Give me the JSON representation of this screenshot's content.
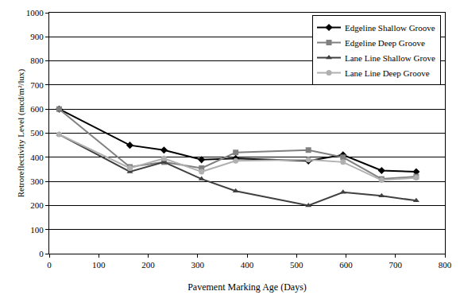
{
  "chart_data": {
    "type": "line",
    "x_label": "Pavement Marking Age (Days)",
    "y_label": "Retroreflectivity Level (mcd/m²/lux)",
    "x": [
      20,
      163,
      232,
      308,
      377,
      524,
      594,
      672,
      742
    ],
    "series": [
      {
        "name": "Edgeline Shallow Groove",
        "color": "#000000",
        "marker": "diamond",
        "values": [
          600,
          450,
          430,
          390,
          395,
          385,
          410,
          345,
          340
        ]
      },
      {
        "name": "Edgeline Deep Groove",
        "color": "#808080",
        "marker": "square",
        "values": [
          600,
          360,
          380,
          355,
          420,
          430,
          400,
          310,
          320
        ]
      },
      {
        "name": "Lane Line Shallow Grove",
        "color": "#404040",
        "marker": "triangle-up",
        "values": [
          495,
          340,
          380,
          310,
          260,
          200,
          255,
          240,
          220
        ]
      },
      {
        "name": "Lane Line Deep Groove",
        "color": "#b0b0b0",
        "marker": "circle",
        "values": [
          495,
          355,
          395,
          340,
          385,
          390,
          380,
          305,
          315
        ]
      }
    ],
    "xlim": [
      0,
      800
    ],
    "xticks": [
      0,
      100,
      200,
      300,
      400,
      500,
      600,
      700,
      800
    ],
    "ylim": [
      0,
      1000
    ],
    "yticks": [
      0,
      100,
      200,
      300,
      400,
      500,
      600,
      700,
      800,
      900,
      1000
    ],
    "grid": true,
    "legend": "top right"
  }
}
